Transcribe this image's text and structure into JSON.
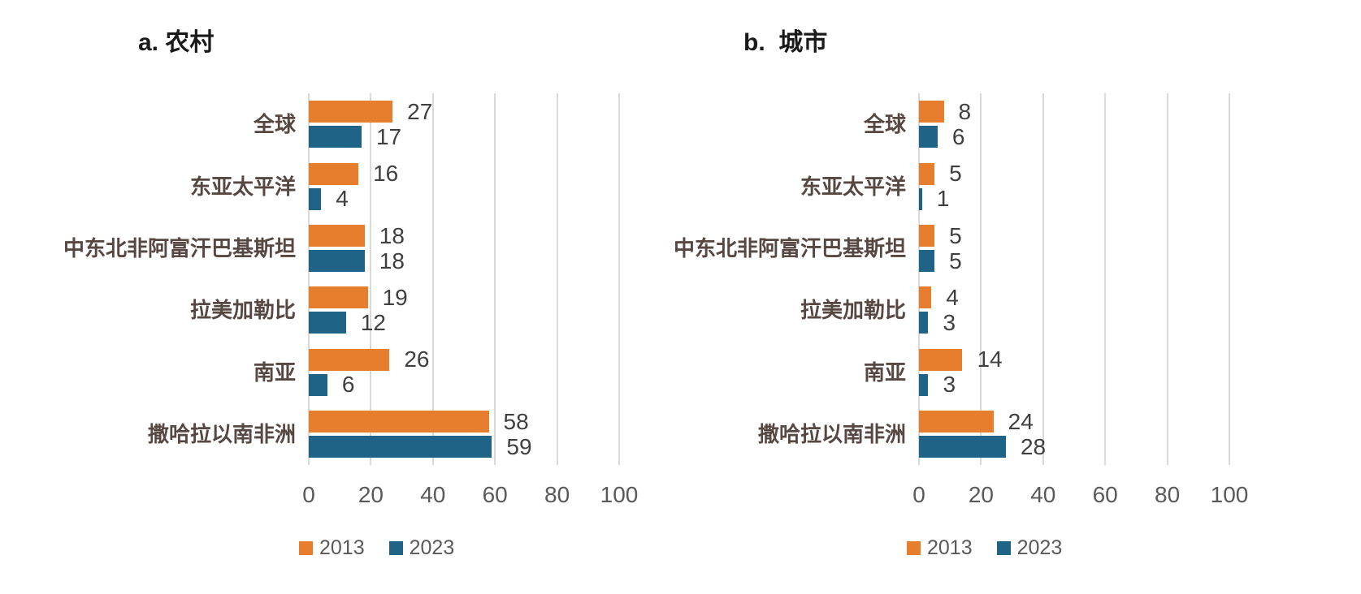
{
  "figure": {
    "background": "#FFFFFF"
  },
  "styles": {
    "series_color_2013": "#E67E2E",
    "series_color_2023": "#1F6387",
    "category_label_color": "#574742",
    "value_label_color": "#3F3F3F",
    "axis_label_color": "#595959",
    "gridline_color": "#D9D9D9",
    "title_color": "#1A1A1A"
  },
  "legend": {
    "items": [
      {
        "label": "2013",
        "color": "#E67E2E"
      },
      {
        "label": "2023",
        "color": "#1F6387"
      }
    ]
  },
  "chart_data": [
    {
      "type": "bar",
      "orientation": "horizontal",
      "title": "a. 农村",
      "categories": [
        "全球",
        "东亚太平洋",
        "中东北非阿富汗巴基斯坦",
        "拉美加勒比",
        "南亚",
        "撒哈拉以南非洲"
      ],
      "series": [
        {
          "name": "2013",
          "color": "#E67E2E",
          "values": [
            27,
            16,
            18,
            19,
            26,
            58
          ]
        },
        {
          "name": "2023",
          "color": "#1F6387",
          "values": [
            17,
            4,
            18,
            12,
            6,
            59
          ]
        }
      ],
      "xticks": [
        0,
        20,
        40,
        60,
        80,
        100
      ],
      "xlim": [
        0,
        105
      ],
      "grid": true,
      "value_labels": true,
      "legend_position": "bottom"
    },
    {
      "type": "bar",
      "orientation": "horizontal",
      "title": "b.  城市",
      "categories": [
        "全球",
        "东亚太平洋",
        "中东北非阿富汗巴基斯坦",
        "拉美加勒比",
        "南亚",
        "撒哈拉以南非洲"
      ],
      "series": [
        {
          "name": "2013",
          "color": "#E67E2E",
          "values": [
            8,
            5,
            5,
            4,
            14,
            24
          ]
        },
        {
          "name": "2023",
          "color": "#1F6387",
          "values": [
            6,
            1,
            5,
            3,
            3,
            28
          ]
        }
      ],
      "xticks": [
        0,
        20,
        40,
        60,
        80,
        100
      ],
      "xlim": [
        0,
        105
      ],
      "grid": true,
      "value_labels": true,
      "legend_position": "bottom"
    }
  ]
}
